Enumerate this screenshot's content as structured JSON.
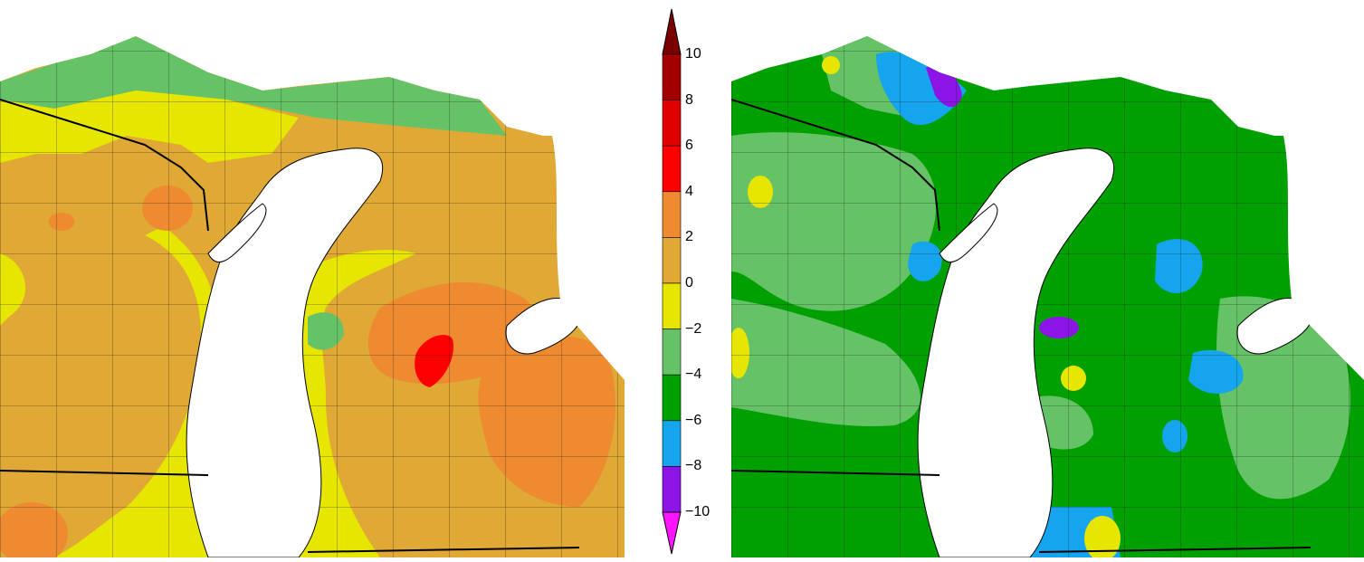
{
  "legend": {
    "ticks": [
      "10",
      "8",
      "6",
      "4",
      "2",
      "0",
      "−2",
      "−4",
      "−6",
      "−8",
      "−10"
    ],
    "bins": [
      {
        "range": [
          8,
          10
        ],
        "color": "#a50000"
      },
      {
        "range": [
          6,
          8
        ],
        "color": "#e10000"
      },
      {
        "range": [
          4,
          6
        ],
        "color": "#ff0000"
      },
      {
        "range": [
          2,
          4
        ],
        "color": "#ee8a30"
      },
      {
        "range": [
          0,
          2
        ],
        "color": "#e0a835"
      },
      {
        "range": [
          -2,
          0
        ],
        "color": "#e6e600"
      },
      {
        "range": [
          -4,
          -2
        ],
        "color": "#66c266"
      },
      {
        "range": [
          -6,
          -4
        ],
        "color": "#00a000"
      },
      {
        "range": [
          -8,
          -6
        ],
        "color": "#14a5ee"
      },
      {
        "range": [
          -10,
          -8
        ],
        "color": "#8c14e6"
      }
    ],
    "over_color": "#7a0000",
    "under_color": "#ff14ff"
  },
  "maps": [
    {
      "name": "left-map",
      "region": "Michigan and Wisconsin",
      "dominant_colors": [
        "#e0a835",
        "#e6e600",
        "#ee8a30",
        "#66c266",
        "#ff0000"
      ]
    },
    {
      "name": "right-map",
      "region": "Michigan and Wisconsin",
      "dominant_colors": [
        "#00a000",
        "#66c266",
        "#14a5ee",
        "#8c14e6",
        "#e6e600"
      ]
    }
  ],
  "colors": {
    "water": "#ffffff",
    "county_lines": "#222222",
    "state_lines": "#000000"
  }
}
